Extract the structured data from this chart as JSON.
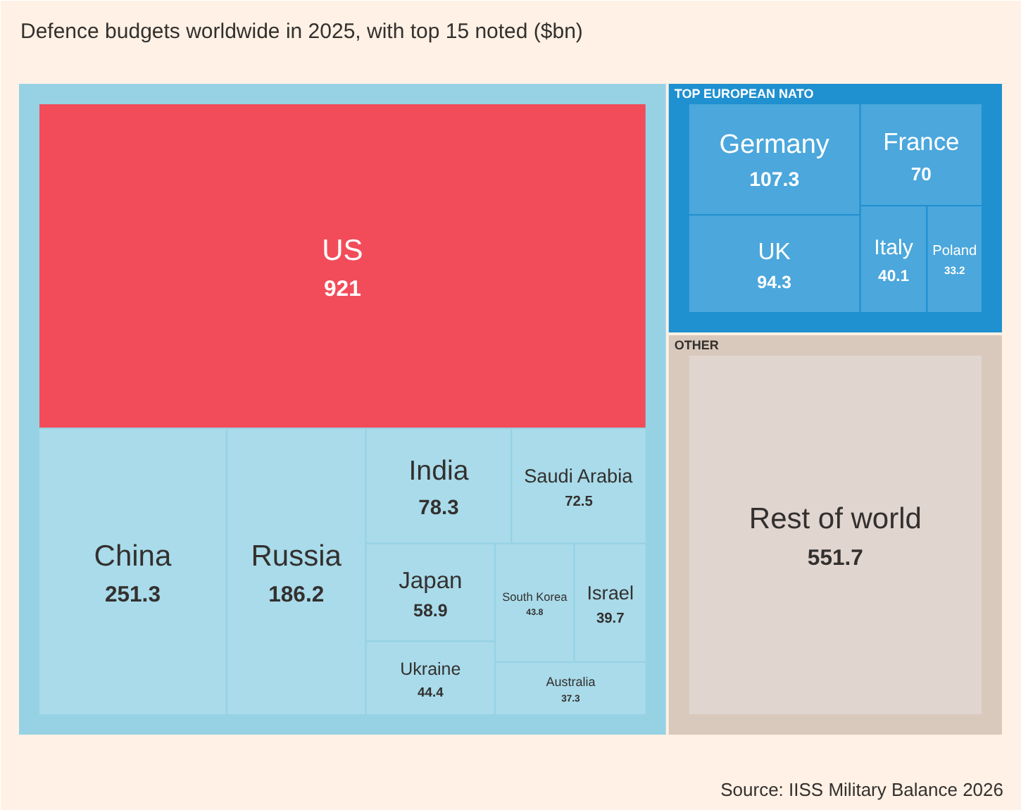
{
  "chart_data": {
    "type": "other",
    "title": "Defence budgets worldwide in 2025, with top 15 noted ($bn)",
    "annotations": [
      "Source: IISS Military Balance 2026"
    ],
    "data_labels": true,
    "categories": [
      "US",
      "China",
      "Russia",
      "India",
      "Saudi Arabia",
      "Japan",
      "Ukraine",
      "South Korea",
      "Israel",
      "Australia",
      "Germany",
      "UK",
      "France",
      "Italy",
      "Poland",
      "Rest of world"
    ],
    "colors": [
      "#f24c5a",
      "#a9dbea",
      "#a9dbea",
      "#a9dbea",
      "#a9dbea",
      "#a9dbea",
      "#a9dbea",
      "#a9dbea",
      "#a9dbea",
      "#a9dbea",
      "#4ba7dc",
      "#4ba7dc",
      "#4ba7dc",
      "#4ba7dc",
      "#4ba7dc",
      "#e1d5cf"
    ],
    "series": [
      {
        "color": "#96d2e4",
        "values": [
          921,
          251.3,
          186.2,
          78.3,
          72.5,
          58.9,
          44.4,
          43.8,
          39.7,
          37.3,
          null,
          null,
          null,
          null,
          null,
          null
        ]
      },
      {
        "name": "TOP EUROPEAN NATO",
        "color": "#1f90d0",
        "values": [
          null,
          null,
          null,
          null,
          null,
          null,
          null,
          null,
          null,
          null,
          107.3,
          94.3,
          70,
          40.1,
          33.2,
          null
        ]
      },
      {
        "name": "OTHER",
        "color": "#d9c9bd",
        "values": [
          null,
          null,
          null,
          null,
          null,
          null,
          null,
          null,
          null,
          null,
          null,
          null,
          null,
          null,
          null,
          551.7
        ]
      }
    ]
  }
}
